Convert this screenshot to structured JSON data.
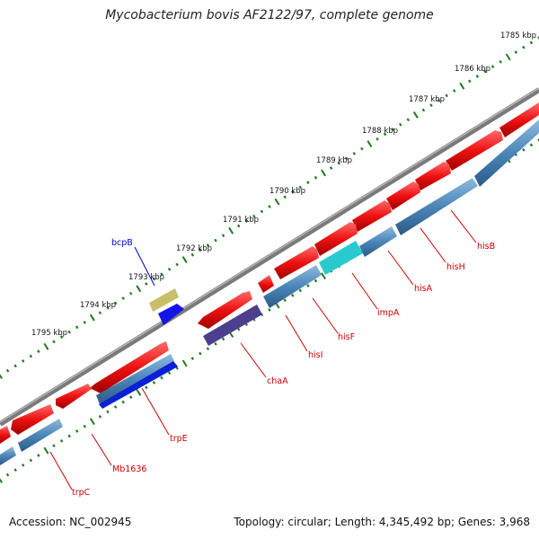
{
  "title": "Mycobacterium bovis AF2122/97, complete genome",
  "footer": {
    "accession": "Accession: NC_002945",
    "stats": "Topology: circular; Length: 4,345,492 bp; Genes: 3,968"
  },
  "ticks": [
    {
      "label": "1785 kbp"
    },
    {
      "label": "1786 kbp"
    },
    {
      "label": "1787 kbp"
    },
    {
      "label": "1788 kbp"
    },
    {
      "label": "1789 kbp"
    },
    {
      "label": "1790 kbp"
    },
    {
      "label": "1791 kbp"
    },
    {
      "label": "1792 kbp"
    },
    {
      "label": "1793 kbp"
    },
    {
      "label": "1794 kbp"
    },
    {
      "label": "1795 kbp"
    }
  ],
  "genes": [
    {
      "name": "hisB"
    },
    {
      "name": "hisH"
    },
    {
      "name": "hisA"
    },
    {
      "name": "impA"
    },
    {
      "name": "hisF"
    },
    {
      "name": "hisI"
    },
    {
      "name": "chaA"
    },
    {
      "name": "trpE"
    },
    {
      "name": "Mb1636"
    },
    {
      "name": "trpC"
    },
    {
      "name": "bcpB"
    }
  ],
  "colors": {
    "forward_cds": "#ee1111",
    "reverse_cds": "#4a86b8",
    "backbone": "#8a8a8a",
    "ticks": "#1f7a1f",
    "label_red": "#cc0000",
    "label_blue": "#0000cc"
  }
}
